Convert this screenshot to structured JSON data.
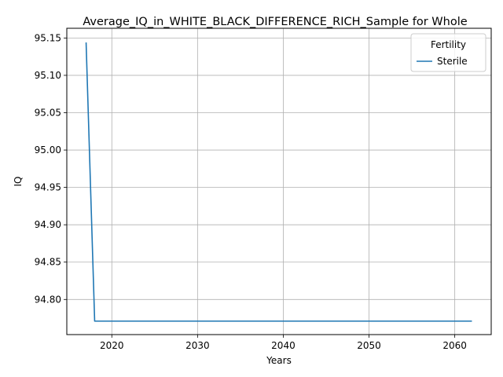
{
  "chart_data": {
    "type": "line",
    "title": "Average_IQ_in_WHITE_BLACK_DIFFERENCE_RICH_Sample for Whole",
    "xlabel": "Years",
    "ylabel": "IQ",
    "xlim": [
      2014.75,
      2064.25
    ],
    "ylim": [
      94.753,
      95.163
    ],
    "x_ticks": [
      2020,
      2030,
      2040,
      2050,
      2060
    ],
    "y_ticks": [
      94.8,
      94.85,
      94.9,
      94.95,
      95.0,
      95.05,
      95.1,
      95.15
    ],
    "y_tick_labels": [
      "94.80",
      "94.85",
      "94.90",
      "94.95",
      "95.00",
      "95.05",
      "95.10",
      "95.15"
    ],
    "grid": true,
    "legend": {
      "title": "Fertility",
      "placement": "top-right"
    },
    "series": [
      {
        "name": "Sterile",
        "color": "#1f77b4",
        "x": [
          2017,
          2018,
          2019,
          2020,
          2021,
          2022,
          2023,
          2024,
          2025,
          2026,
          2027,
          2028,
          2029,
          2030,
          2031,
          2032,
          2033,
          2034,
          2035,
          2036,
          2037,
          2038,
          2039,
          2040,
          2041,
          2042,
          2043,
          2044,
          2045,
          2046,
          2047,
          2048,
          2049,
          2050,
          2051,
          2052,
          2053,
          2054,
          2055,
          2056,
          2057,
          2058,
          2059,
          2060,
          2061,
          2062
        ],
        "y": [
          95.144,
          94.771,
          94.771,
          94.771,
          94.771,
          94.771,
          94.771,
          94.771,
          94.771,
          94.771,
          94.771,
          94.771,
          94.771,
          94.771,
          94.771,
          94.771,
          94.771,
          94.771,
          94.771,
          94.771,
          94.771,
          94.771,
          94.771,
          94.771,
          94.771,
          94.771,
          94.771,
          94.771,
          94.771,
          94.771,
          94.771,
          94.771,
          94.771,
          94.771,
          94.771,
          94.771,
          94.771,
          94.771,
          94.771,
          94.771,
          94.771,
          94.771,
          94.771,
          94.771,
          94.771,
          94.771
        ]
      }
    ]
  }
}
